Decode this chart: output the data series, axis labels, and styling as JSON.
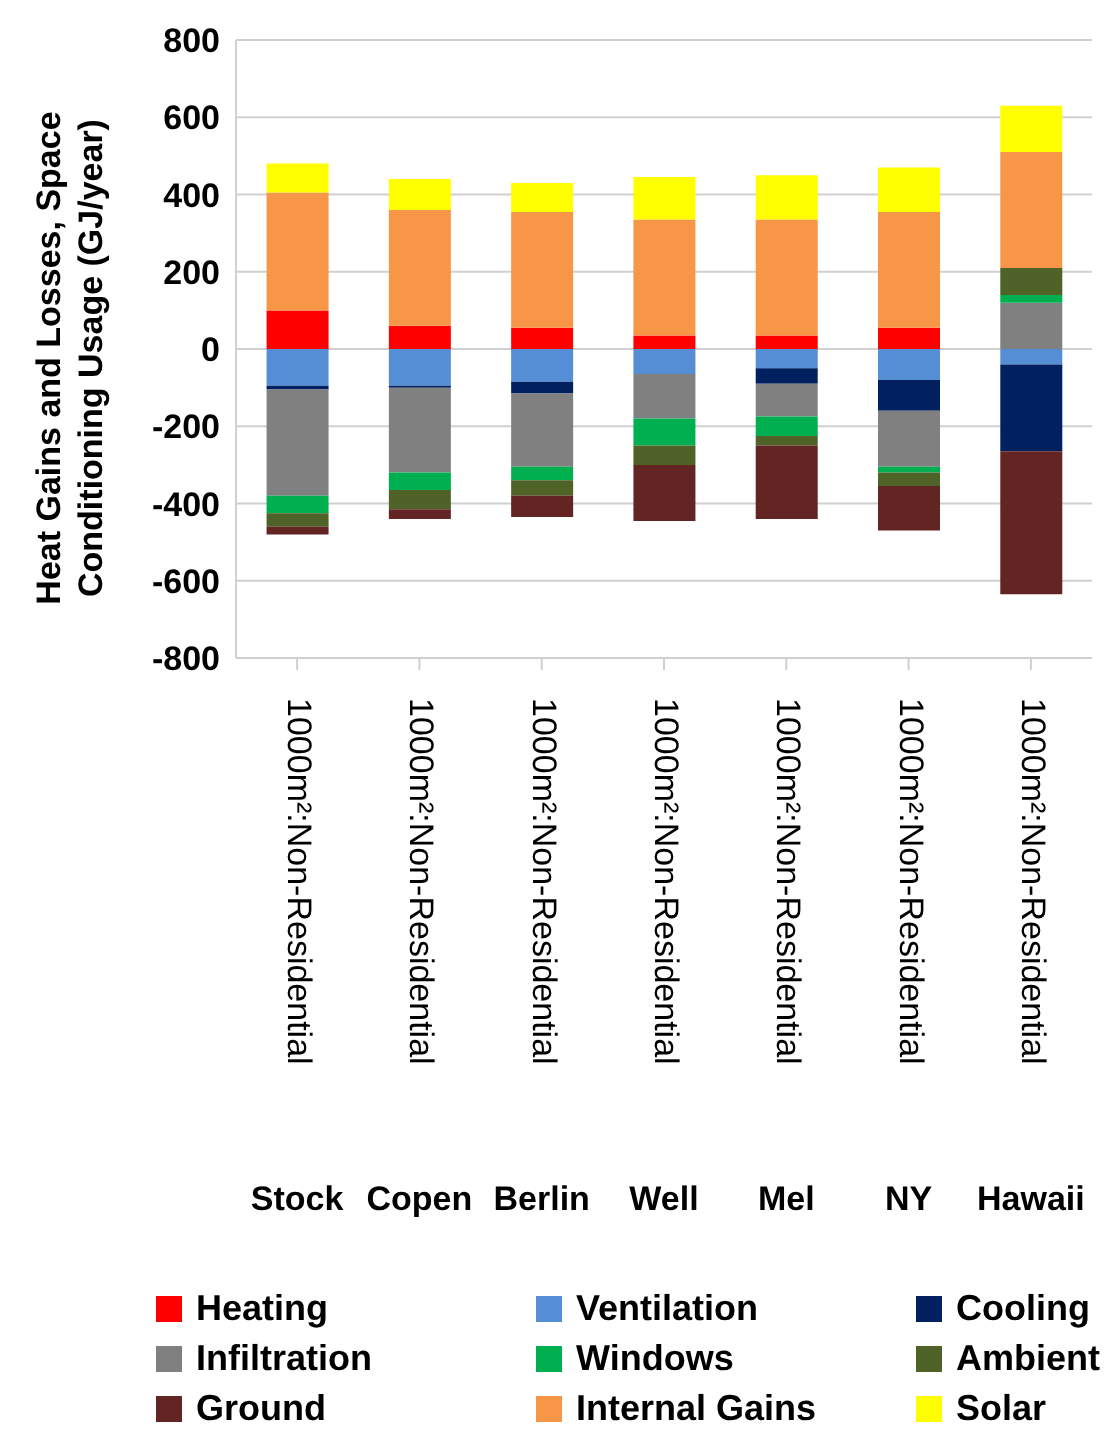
{
  "chart_data": {
    "type": "bar",
    "stacked": true,
    "ylabel": "Heat Gains and Losses, Space Conditioning Usage (GJ/year)",
    "categories": [
      "1000m²:Non-Residential\nStock",
      "1000m²:Non-Residential\nCopen",
      "1000m²:Non-Residential\nBerlin",
      "1000m²:Non-Residential\nWell",
      "1000m²:Non-Residential\nMel",
      "1000m²:Non-Residential\nNY",
      "1000m²:Non-Residential\nHawaii"
    ],
    "series": [
      {
        "name": "Heating",
        "color": "#ff0000",
        "values": [
          100,
          60,
          55,
          35,
          35,
          55,
          0
        ]
      },
      {
        "name": "Ventilation",
        "color": "#558ed5",
        "values": [
          -95,
          -95,
          -85,
          -65,
          -50,
          -80,
          -40
        ]
      },
      {
        "name": "Cooling",
        "color": "#002060",
        "values": [
          -10,
          -5,
          -30,
          0,
          -40,
          -80,
          -225
        ]
      },
      {
        "name": "Infiltration",
        "color": "#808080",
        "values": [
          -275,
          -220,
          -190,
          -115,
          -85,
          -145,
          120
        ]
      },
      {
        "name": "Windows",
        "color": "#00b050",
        "values": [
          -45,
          -45,
          -35,
          -70,
          -50,
          -15,
          20
        ]
      },
      {
        "name": "Ambient",
        "color": "#4f6228",
        "values": [
          -35,
          -50,
          -40,
          -50,
          -25,
          -35,
          70
        ]
      },
      {
        "name": "Ground",
        "color": "#632523",
        "values": [
          -20,
          -25,
          -55,
          -145,
          -190,
          -115,
          -370
        ]
      },
      {
        "name": "Internal Gains",
        "color": "#f79646",
        "values": [
          305,
          300,
          300,
          300,
          300,
          300,
          300
        ]
      },
      {
        "name": "Solar",
        "color": "#ffff00",
        "values": [
          75,
          80,
          75,
          110,
          115,
          115,
          120
        ]
      }
    ],
    "ylim": [
      -800,
      800
    ],
    "yticks": [
      -800,
      -600,
      -400,
      -200,
      0,
      200,
      400,
      600,
      800
    ],
    "grid": "y",
    "legend": "bottom"
  }
}
